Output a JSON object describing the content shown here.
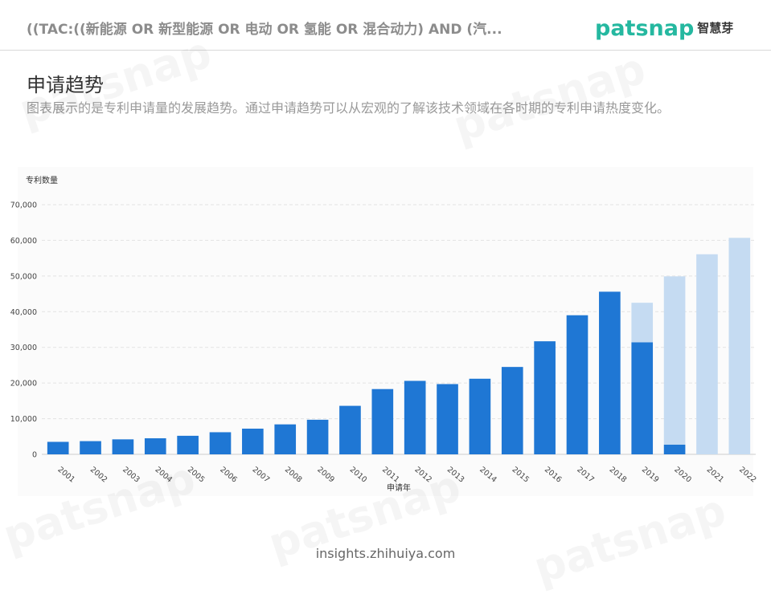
{
  "header": {
    "query": "((TAC:((新能源 OR 新型能源 OR 电动 OR 氢能 OR 混合动力) AND (汽...",
    "logo_text": "patsnap",
    "logo_cn": "智慧芽"
  },
  "section": {
    "title": "申请趋势",
    "description": "图表展示的是专利申请量的发展趋势。通过申请趋势可以从宏观的了解该技术领域在各时期的专利申请热度变化。"
  },
  "footer": {
    "text": "insights.zhihuiya.com"
  },
  "watermark": {
    "text": "patsnap 智慧芽"
  },
  "colors": {
    "bar_solid": "#1f77d4",
    "bar_light": "#c5dbf2",
    "logo": "#25b8a0"
  },
  "chart_data": {
    "type": "bar",
    "stacked": true,
    "ylabel": "专利数量",
    "xlabel": "申请年",
    "ylim": [
      0,
      70000
    ],
    "yticks": [
      0,
      10000,
      20000,
      30000,
      40000,
      50000,
      60000,
      70000
    ],
    "ytick_labels": [
      "0",
      "10,000",
      "20,000",
      "30,000",
      "40,000",
      "50,000",
      "60,000",
      "70,000"
    ],
    "grid": true,
    "categories": [
      "2001",
      "2002",
      "2003",
      "2004",
      "2005",
      "2006",
      "2007",
      "2008",
      "2009",
      "2010",
      "2011",
      "2012",
      "2013",
      "2014",
      "2015",
      "2016",
      "2017",
      "2018",
      "2019",
      "2020",
      "2021",
      "2022"
    ],
    "series": [
      {
        "color": "#1f77d4",
        "values": [
          3500,
          3700,
          4200,
          4500,
          5200,
          6200,
          7200,
          8400,
          9700,
          13600,
          18300,
          20600,
          19700,
          21200,
          24500,
          31700,
          39000,
          45600,
          31400,
          2700,
          0,
          0
        ]
      },
      {
        "color": "#c5dbf2",
        "values": [
          0,
          0,
          0,
          0,
          0,
          0,
          0,
          0,
          0,
          0,
          0,
          0,
          0,
          0,
          0,
          0,
          0,
          0,
          11100,
          47200,
          56100,
          60700
        ]
      }
    ]
  }
}
